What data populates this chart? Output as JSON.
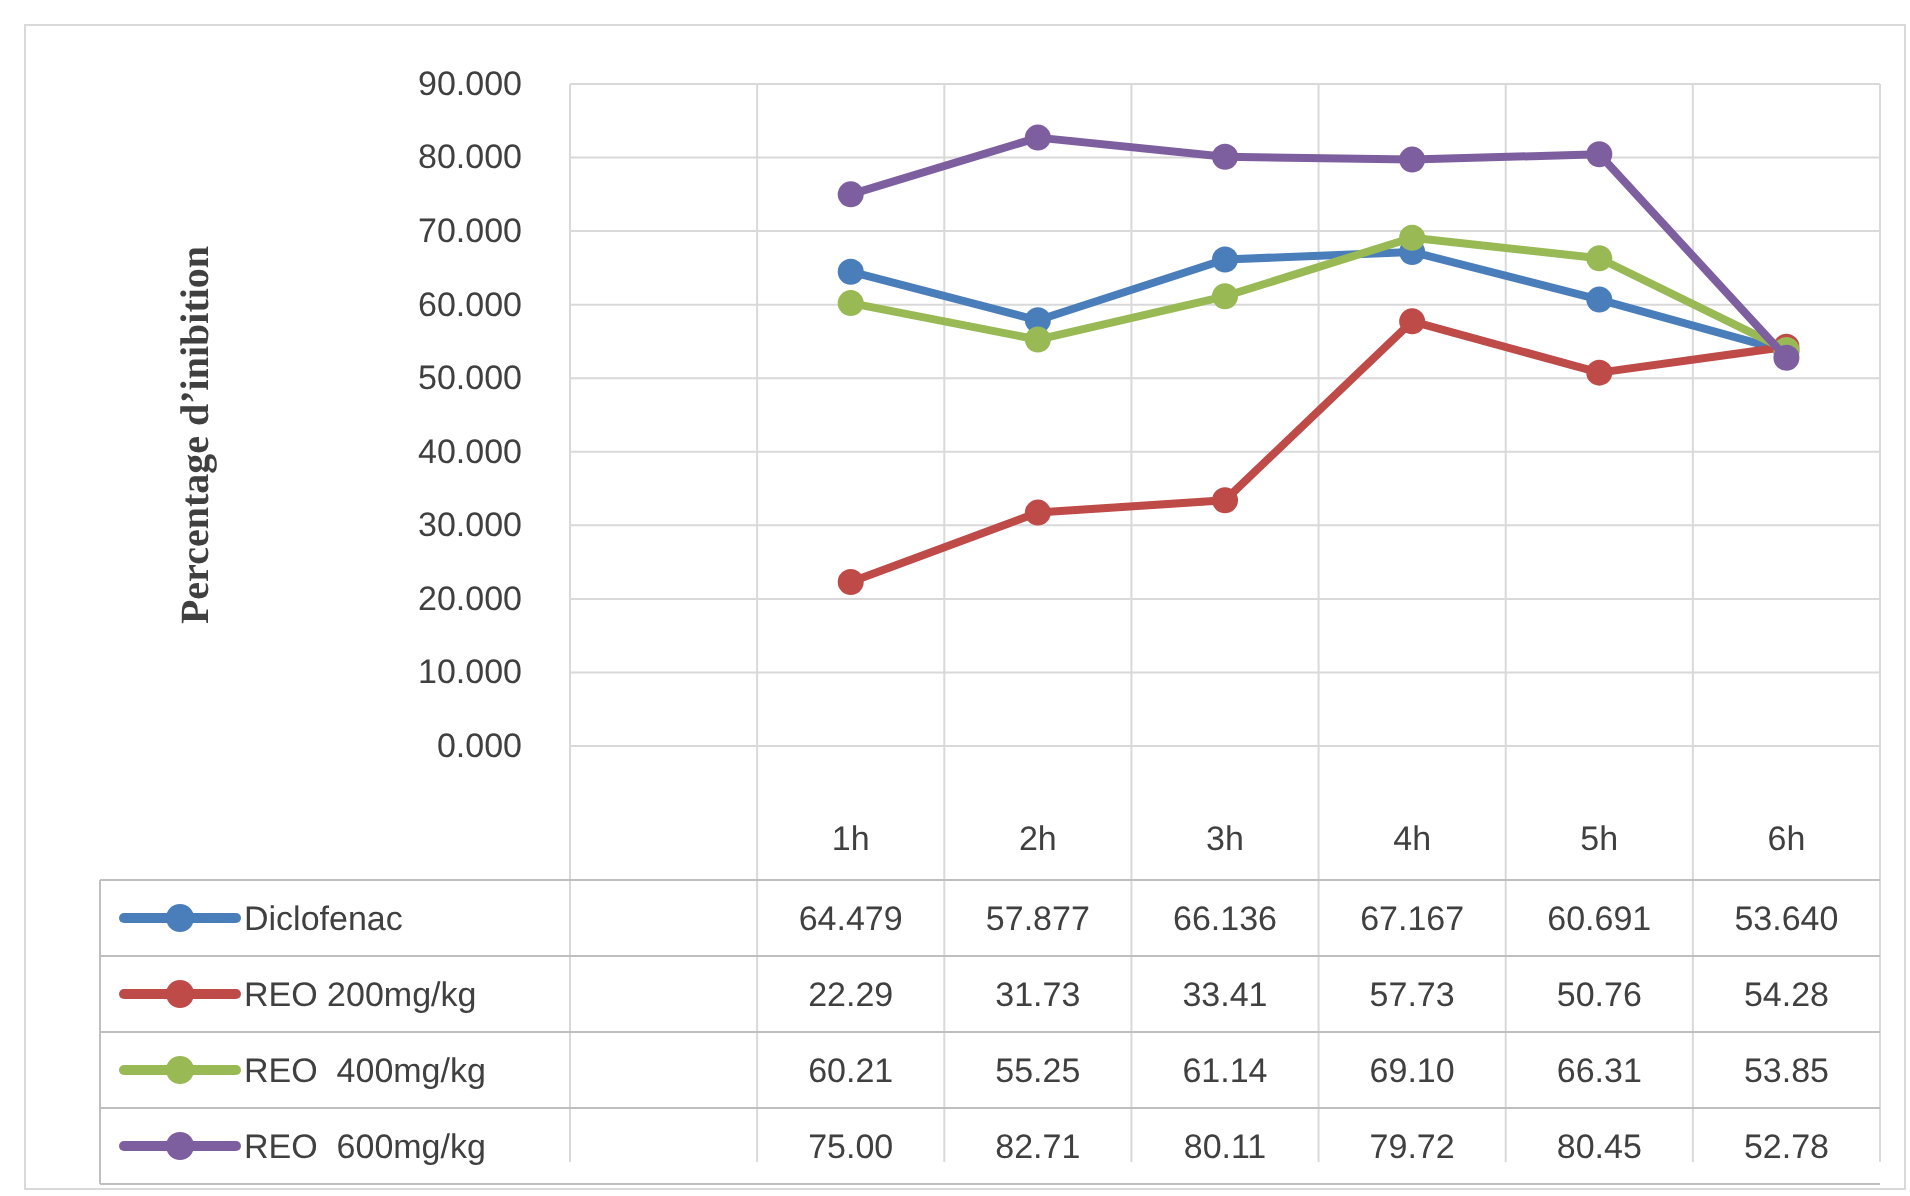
{
  "chart_data": {
    "type": "line",
    "ylabel": "Percentage d’inibition",
    "categories": [
      null,
      "1h",
      "2h",
      "3h",
      "4h",
      "5h",
      "6h"
    ],
    "ylim": [
      0,
      90
    ],
    "yticks": [
      {
        "value": 0,
        "label": "0.000"
      },
      {
        "value": 10,
        "label": "10.000"
      },
      {
        "value": 20,
        "label": "20.000"
      },
      {
        "value": 30,
        "label": "30.000"
      },
      {
        "value": 40,
        "label": "40.000"
      },
      {
        "value": 50,
        "label": "50.000"
      },
      {
        "value": 60,
        "label": "60.000"
      },
      {
        "value": 70,
        "label": "70.000"
      },
      {
        "value": 80,
        "label": "80.000"
      },
      {
        "value": 90,
        "label": "90.000"
      }
    ],
    "grid": true,
    "legend": "bottom",
    "marker": "circle",
    "line_style": "solid",
    "series": [
      {
        "name": "Diclofenac",
        "color": "#4a7ebb",
        "values": [
          null,
          64.479,
          57.877,
          66.136,
          67.167,
          60.691,
          53.64
        ],
        "value_labels": [
          null,
          "64.479",
          "57.877",
          "66.136",
          "67.167",
          "60.691",
          "53.640"
        ]
      },
      {
        "name": "REO 200mg/kg",
        "color": "#be4b48",
        "values": [
          null,
          22.29,
          31.73,
          33.41,
          57.73,
          50.76,
          54.28
        ],
        "value_labels": [
          null,
          "22.29",
          "31.73",
          "33.41",
          "57.73",
          "50.76",
          "54.28"
        ]
      },
      {
        "name": "REO  400mg/kg",
        "color": "#98b954",
        "values": [
          null,
          60.21,
          55.25,
          61.14,
          69.1,
          66.31,
          53.85
        ],
        "value_labels": [
          null,
          "60.21",
          "55.25",
          "61.14",
          "69.10",
          "66.31",
          "53.85"
        ]
      },
      {
        "name": "REO  600mg/kg",
        "color": "#7d5fa0",
        "values": [
          null,
          75.0,
          82.71,
          80.11,
          79.72,
          80.45,
          52.78
        ],
        "value_labels": [
          null,
          "75.00",
          "82.71",
          "80.11",
          "79.72",
          "80.45",
          "52.78"
        ]
      }
    ]
  }
}
